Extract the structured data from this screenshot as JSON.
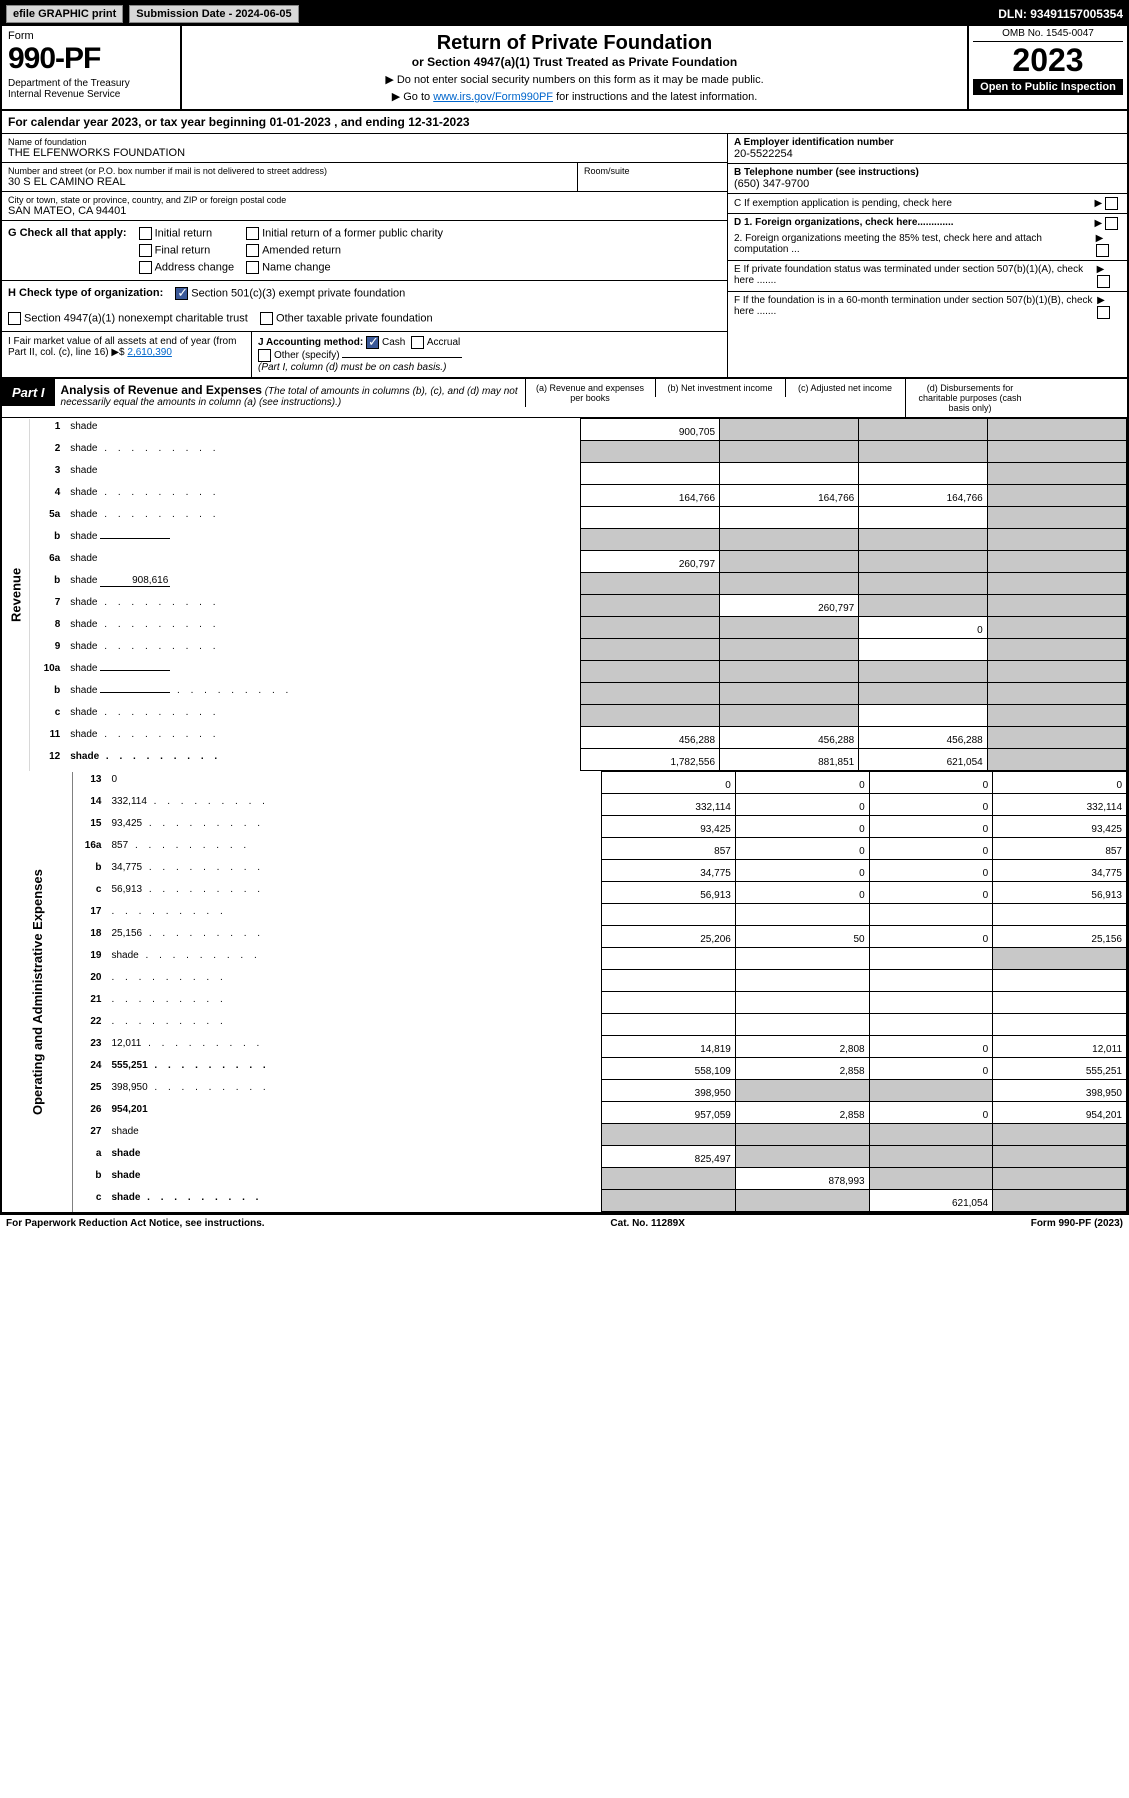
{
  "topbar": {
    "efile": "efile GRAPHIC print",
    "sub_date": "Submission Date - 2024-06-05",
    "dln": "DLN: 93491157005354"
  },
  "header": {
    "form_word": "Form",
    "form_no": "990-PF",
    "dept": "Department of the Treasury\nInternal Revenue Service",
    "title": "Return of Private Foundation",
    "subtitle": "or Section 4947(a)(1) Trust Treated as Private Foundation",
    "note1": "▶ Do not enter social security numbers on this form as it may be made public.",
    "note2_pre": "▶ Go to ",
    "note2_link": "www.irs.gov/Form990PF",
    "note2_post": " for instructions and the latest information.",
    "omb": "OMB No. 1545-0047",
    "year": "2023",
    "open": "Open to Public Inspection"
  },
  "year_row": {
    "pre": "For calendar year 2023, or tax year beginning ",
    "begin": "01-01-2023",
    "mid": " , and ending ",
    "end": "12-31-2023"
  },
  "entity": {
    "name_lbl": "Name of foundation",
    "name": "THE ELFENWORKS FOUNDATION",
    "addr_lbl": "Number and street (or P.O. box number if mail is not delivered to street address)",
    "addr": "30 S EL CAMINO REAL",
    "room_lbl": "Room/suite",
    "city_lbl": "City or town, state or province, country, and ZIP or foreign postal code",
    "city": "SAN MATEO, CA  94401",
    "ein_lbl": "A Employer identification number",
    "ein": "20-5522254",
    "phone_lbl": "B Telephone number (see instructions)",
    "phone": "(650) 347-9700",
    "c_lbl": "C If exemption application is pending, check here",
    "d1_lbl": "D 1. Foreign organizations, check here.............",
    "d2_lbl": "2. Foreign organizations meeting the 85% test, check here and attach computation ...",
    "e_lbl": "E  If private foundation status was terminated under section 507(b)(1)(A), check here .......",
    "f_lbl": "F  If the foundation is in a 60-month termination under section 507(b)(1)(B), check here ......."
  },
  "g": {
    "lbl": "G Check all that apply:",
    "opts": [
      "Initial return",
      "Final return",
      "Address change",
      "Initial return of a former public charity",
      "Amended return",
      "Name change"
    ]
  },
  "h": {
    "lbl": "H Check type of organization:",
    "opt1": "Section 501(c)(3) exempt private foundation",
    "opt2": "Section 4947(a)(1) nonexempt charitable trust",
    "opt3": "Other taxable private foundation"
  },
  "i": {
    "lbl": "I Fair market value of all assets at end of year (from Part II, col. (c), line 16) ▶$ ",
    "val": "2,610,390"
  },
  "j": {
    "lbl": "J Accounting method:",
    "cash": "Cash",
    "accrual": "Accrual",
    "other": "Other (specify)",
    "note": "(Part I, column (d) must be on cash basis.)"
  },
  "part1": {
    "badge": "Part I",
    "title": "Analysis of Revenue and Expenses",
    "note": " (The total of amounts in columns (b), (c), and (d) may not necessarily equal the amounts in column (a) (see instructions).)",
    "cols": {
      "a": "(a) Revenue and expenses per books",
      "b": "(b) Net investment income",
      "c": "(c) Adjusted net income",
      "d": "(d) Disbursements for charitable purposes (cash basis only)"
    }
  },
  "side": {
    "rev": "Revenue",
    "exp": "Operating and Administrative Expenses"
  },
  "rows": [
    {
      "n": "1",
      "d": "shade",
      "a": "900,705",
      "b": "shade",
      "c": "shade"
    },
    {
      "n": "2",
      "d": "shade",
      "a": "shade",
      "b": "shade",
      "c": "shade",
      "dots": true
    },
    {
      "n": "3",
      "d": "shade",
      "a": "",
      "b": "",
      "c": ""
    },
    {
      "n": "4",
      "d": "shade",
      "a": "164,766",
      "b": "164,766",
      "c": "164,766",
      "dots": true
    },
    {
      "n": "5a",
      "d": "shade",
      "a": "",
      "b": "",
      "c": "",
      "dots": true
    },
    {
      "n": "b",
      "d": "shade",
      "a": "shade",
      "b": "shade",
      "c": "shade",
      "inline": ""
    },
    {
      "n": "6a",
      "d": "shade",
      "a": "260,797",
      "b": "shade",
      "c": "shade"
    },
    {
      "n": "b",
      "d": "shade",
      "a": "shade",
      "b": "shade",
      "c": "shade",
      "inline": "908,616"
    },
    {
      "n": "7",
      "d": "shade",
      "a": "shade",
      "b": "260,797",
      "c": "shade",
      "dots": true
    },
    {
      "n": "8",
      "d": "shade",
      "a": "shade",
      "b": "shade",
      "c": "0",
      "dots": true
    },
    {
      "n": "9",
      "d": "shade",
      "a": "shade",
      "b": "shade",
      "c": "",
      "dots": true
    },
    {
      "n": "10a",
      "d": "shade",
      "a": "shade",
      "b": "shade",
      "c": "shade",
      "inline": ""
    },
    {
      "n": "b",
      "d": "shade",
      "a": "shade",
      "b": "shade",
      "c": "shade",
      "inline": "",
      "dots": true
    },
    {
      "n": "c",
      "d": "shade",
      "a": "shade",
      "b": "shade",
      "c": "",
      "dots": true
    },
    {
      "n": "11",
      "d": "shade",
      "a": "456,288",
      "b": "456,288",
      "c": "456,288",
      "dots": true
    },
    {
      "n": "12",
      "d": "shade",
      "a": "1,782,556",
      "b": "881,851",
      "c": "621,054",
      "bold": true,
      "dots": true
    }
  ],
  "exp_rows": [
    {
      "n": "13",
      "d": "0",
      "a": "0",
      "b": "0",
      "c": "0"
    },
    {
      "n": "14",
      "d": "332,114",
      "a": "332,114",
      "b": "0",
      "c": "0",
      "dots": true
    },
    {
      "n": "15",
      "d": "93,425",
      "a": "93,425",
      "b": "0",
      "c": "0",
      "dots": true
    },
    {
      "n": "16a",
      "d": "857",
      "a": "857",
      "b": "0",
      "c": "0",
      "dots": true
    },
    {
      "n": "b",
      "d": "34,775",
      "a": "34,775",
      "b": "0",
      "c": "0",
      "dots": true
    },
    {
      "n": "c",
      "d": "56,913",
      "a": "56,913",
      "b": "0",
      "c": "0",
      "dots": true
    },
    {
      "n": "17",
      "d": "",
      "a": "",
      "b": "",
      "c": "",
      "dots": true
    },
    {
      "n": "18",
      "d": "25,156",
      "a": "25,206",
      "b": "50",
      "c": "0",
      "dots": true
    },
    {
      "n": "19",
      "d": "shade",
      "a": "",
      "b": "",
      "c": "",
      "dots": true
    },
    {
      "n": "20",
      "d": "",
      "a": "",
      "b": "",
      "c": "",
      "dots": true
    },
    {
      "n": "21",
      "d": "",
      "a": "",
      "b": "",
      "c": "",
      "dots": true
    },
    {
      "n": "22",
      "d": "",
      "a": "",
      "b": "",
      "c": "",
      "dots": true
    },
    {
      "n": "23",
      "d": "12,011",
      "a": "14,819",
      "b": "2,808",
      "c": "0",
      "dots": true
    },
    {
      "n": "24",
      "d": "555,251",
      "a": "558,109",
      "b": "2,858",
      "c": "0",
      "bold": true,
      "dots": true
    },
    {
      "n": "25",
      "d": "398,950",
      "a": "398,950",
      "b": "shade",
      "c": "shade",
      "dots": true
    },
    {
      "n": "26",
      "d": "954,201",
      "a": "957,059",
      "b": "2,858",
      "c": "0",
      "bold": true
    },
    {
      "n": "27",
      "d": "shade",
      "a": "shade",
      "b": "shade",
      "c": "shade"
    },
    {
      "n": "a",
      "d": "shade",
      "a": "825,497",
      "b": "shade",
      "c": "shade",
      "bold": true
    },
    {
      "n": "b",
      "d": "shade",
      "a": "shade",
      "b": "878,993",
      "c": "shade",
      "bold": true
    },
    {
      "n": "c",
      "d": "shade",
      "a": "shade",
      "b": "shade",
      "c": "621,054",
      "bold": true,
      "dots": true
    }
  ],
  "footer": {
    "left": "For Paperwork Reduction Act Notice, see instructions.",
    "mid": "Cat. No. 11289X",
    "right": "Form 990-PF (2023)"
  }
}
